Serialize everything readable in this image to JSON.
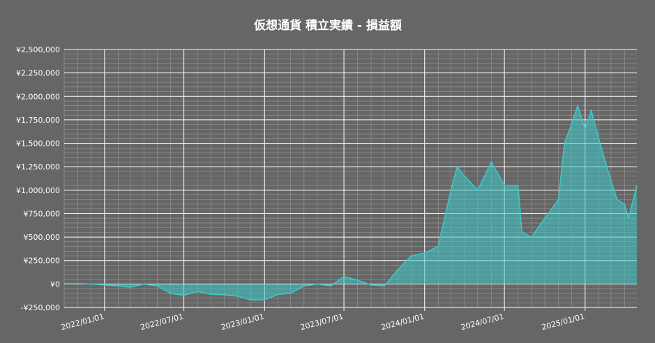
{
  "chart_data": {
    "type": "area",
    "title": "仮想通貨 積立実績  -  損益額",
    "x": [
      "2021/10/01",
      "2021/11/01",
      "2021/12/01",
      "2022/01/01",
      "2022/02/01",
      "2022/03/01",
      "2022/04/01",
      "2022/05/01",
      "2022/06/01",
      "2022/07/01",
      "2022/08/01",
      "2022/09/01",
      "2022/10/01",
      "2022/11/01",
      "2022/12/01",
      "2023/01/01",
      "2023/02/01",
      "2023/03/01",
      "2023/04/01",
      "2023/05/01",
      "2023/06/01",
      "2023/07/01",
      "2023/08/01",
      "2023/09/01",
      "2023/10/01",
      "2023/11/01",
      "2023/12/01",
      "2024/01/01",
      "2024/02/01",
      "2024/03/01",
      "2024/03/15",
      "2024/04/01",
      "2024/05/01",
      "2024/06/01",
      "2024/07/01",
      "2024/08/01",
      "2024/08/10",
      "2024/09/01",
      "2024/10/01",
      "2024/11/01",
      "2024/11/15",
      "2024/12/01",
      "2024/12/15",
      "2025/01/01",
      "2025/01/15",
      "2025/02/01",
      "2025/03/01",
      "2025/03/15",
      "2025/04/01",
      "2025/04/10",
      "2025/04/29"
    ],
    "series": [
      {
        "name": "損益額",
        "color": "#3cc8c8",
        "values": [
          5000,
          5000,
          0,
          -10000,
          -20000,
          -35000,
          0,
          -20000,
          -100000,
          -120000,
          -80000,
          -110000,
          -115000,
          -130000,
          -170000,
          -170000,
          -110000,
          -100000,
          -20000,
          0,
          -20000,
          80000,
          40000,
          -10000,
          -20000,
          150000,
          300000,
          330000,
          400000,
          1000000,
          1250000,
          1150000,
          1000000,
          1300000,
          1050000,
          1050000,
          550000,
          500000,
          700000,
          900000,
          1500000,
          1700000,
          1900000,
          1650000,
          1850000,
          1550000,
          1100000,
          900000,
          850000,
          700000,
          1050000
        ]
      }
    ],
    "xlim": [
      "2021/10/01",
      "2025/04/29"
    ],
    "xticks": [
      "2022/01/01",
      "2022/07/01",
      "2023/01/01",
      "2023/07/01",
      "2024/01/01",
      "2024/07/01",
      "2025/01/01"
    ],
    "ylim": [
      -250000,
      2500000
    ],
    "yticks": [
      {
        "value": -250000,
        "label": "-¥250,000"
      },
      {
        "value": 0,
        "label": "¥0"
      },
      {
        "value": 250000,
        "label": "¥250,000"
      },
      {
        "value": 500000,
        "label": "¥500,000"
      },
      {
        "value": 750000,
        "label": "¥750,000"
      },
      {
        "value": 1000000,
        "label": "¥1,000,000"
      },
      {
        "value": 1250000,
        "label": "¥1,250,000"
      },
      {
        "value": 1500000,
        "label": "¥1,500,000"
      },
      {
        "value": 1750000,
        "label": "¥1,750,000"
      },
      {
        "value": 2000000,
        "label": "¥2,000,000"
      },
      {
        "value": 2250000,
        "label": "¥2,250,000"
      },
      {
        "value": 2500000,
        "label": "¥2,500,000"
      }
    ],
    "grid": true
  }
}
